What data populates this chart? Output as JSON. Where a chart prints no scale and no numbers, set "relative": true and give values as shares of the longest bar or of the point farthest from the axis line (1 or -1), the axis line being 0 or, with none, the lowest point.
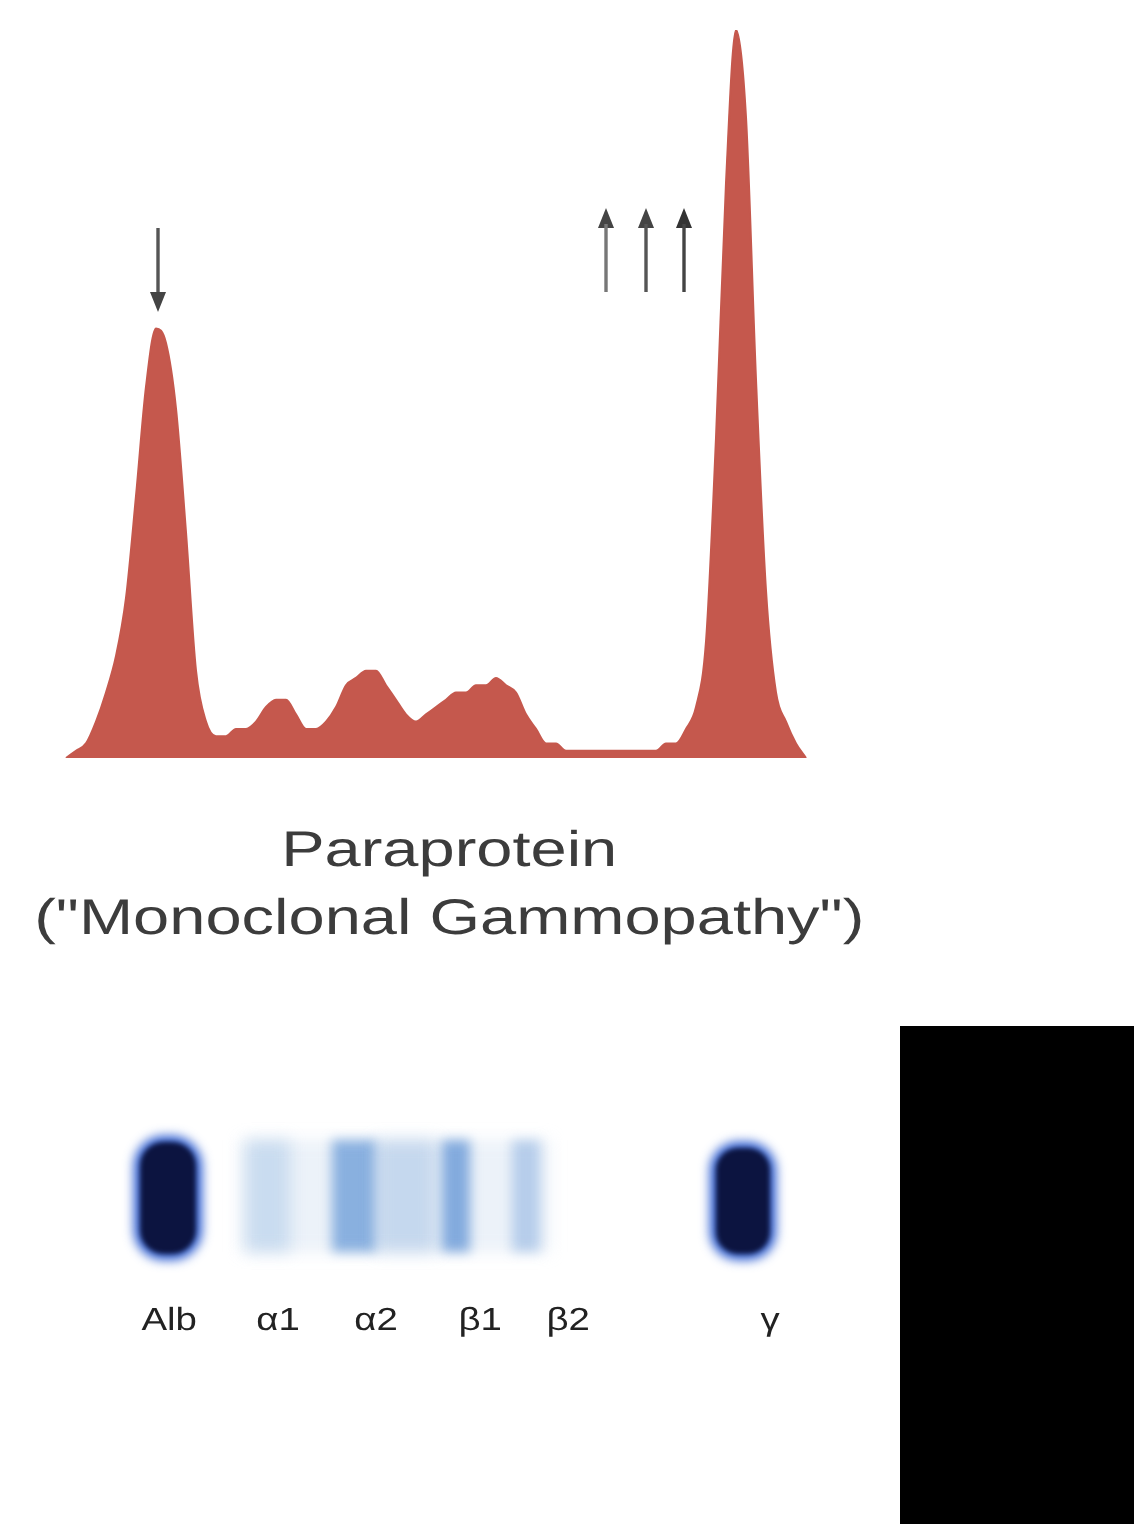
{
  "chart_data": {
    "type": "area",
    "relative": true,
    "tick_labels": false,
    "title": "Paraprotein",
    "subtitle": "(\"Monoclonal Gammopathy\")",
    "annotations": [
      "Alb",
      "α1",
      "α2",
      "β1",
      "β2",
      "γ"
    ],
    "categories": [
      null,
      null,
      null,
      null,
      null,
      null,
      null,
      null,
      null,
      null,
      null,
      null,
      null,
      null,
      null,
      null,
      null,
      null,
      null,
      null,
      null,
      null,
      null,
      null,
      null,
      null,
      null,
      null,
      null,
      null,
      null,
      null,
      null,
      null,
      null,
      null,
      null,
      null,
      null,
      null,
      null,
      null,
      null,
      null,
      null,
      null,
      null,
      null,
      null,
      null,
      null,
      null,
      null,
      null,
      null,
      null,
      null,
      null,
      null,
      null,
      null,
      null,
      null,
      null,
      null,
      null,
      null,
      null,
      null,
      null,
      null,
      null,
      null,
      null,
      null
    ],
    "series": [
      {
        "color": "#c5584d",
        "values": [
          0,
          0.01,
          0.02,
          0.05,
          0.09,
          0.14,
          0.22,
          0.36,
          0.51,
          0.59,
          0.57,
          0.48,
          0.31,
          0.12,
          0.05,
          0.03,
          0.03,
          0.04,
          0.04,
          0.05,
          0.07,
          0.08,
          0.08,
          0.06,
          0.04,
          0.04,
          0.05,
          0.07,
          0.1,
          0.11,
          0.12,
          0.12,
          0.1,
          0.08,
          0.06,
          0.05,
          0.06,
          0.07,
          0.08,
          0.09,
          0.09,
          0.1,
          0.1,
          0.11,
          0.1,
          0.09,
          0.06,
          0.04,
          0.02,
          0.02,
          0.01,
          0.01,
          0.01,
          0.01,
          0.01,
          0.01,
          0.01,
          0.01,
          0.01,
          0.01,
          0.02,
          0.02,
          0.04,
          0.07,
          0.16,
          0.44,
          0.79,
          1,
          0.88,
          0.52,
          0.23,
          0.09,
          0.05,
          0.02,
          0
        ]
      }
    ]
  }
}
